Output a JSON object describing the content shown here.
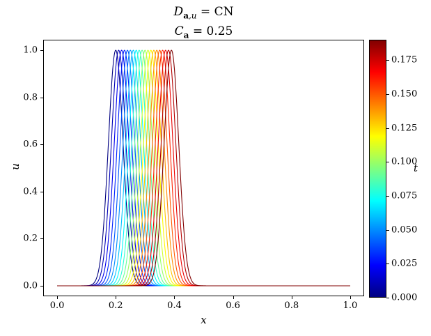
{
  "figure": {
    "background": "#ffffff",
    "title_line1": {
      "main": "D",
      "sub_bold": "a",
      "sub_rest": ",u",
      "rest": " = CN"
    },
    "title_line2": {
      "main": "C",
      "sub_bold": "a",
      "rest": " = 0.25"
    },
    "xlabel": "x",
    "ylabel": "u"
  },
  "chart_data": {
    "type": "line",
    "title": "D_{a,u} = CN ; C_a = 0.25",
    "xlabel": "x",
    "ylabel": "u",
    "xlim": [
      -0.0476,
      1.0476
    ],
    "ylim": [
      -0.0444,
      1.0444
    ],
    "grid": false,
    "frame_color": "#000000",
    "xticks": [
      0.0,
      0.2,
      0.4,
      0.6,
      0.8,
      1.0
    ],
    "xtick_labels": [
      "0.0",
      "0.2",
      "0.4",
      "0.6",
      "0.8",
      "1.0"
    ],
    "yticks": [
      0.0,
      0.2,
      0.4,
      0.6,
      0.8,
      1.0
    ],
    "ytick_labels": [
      "0.0",
      "0.2",
      "0.4",
      "0.6",
      "0.8",
      "1.0"
    ],
    "curve_model": {
      "shape": "gaussian",
      "formula": "u(x,t) = exp(-0.5*((x - (0.2 + t)) / 0.025)^2)",
      "amplitude": 1.0,
      "sigma": 0.025,
      "x_range": [
        0.0,
        1.0
      ],
      "n_points": 601,
      "line_width": 1.1
    },
    "colormap": "jet",
    "color_norm": [
      0.0,
      0.19
    ],
    "series": [
      {
        "t": 0.0,
        "center": 0.2
      },
      {
        "t": 0.01,
        "center": 0.21
      },
      {
        "t": 0.02,
        "center": 0.22
      },
      {
        "t": 0.03,
        "center": 0.23
      },
      {
        "t": 0.04,
        "center": 0.24
      },
      {
        "t": 0.05,
        "center": 0.25
      },
      {
        "t": 0.06,
        "center": 0.26
      },
      {
        "t": 0.07,
        "center": 0.27
      },
      {
        "t": 0.08,
        "center": 0.28
      },
      {
        "t": 0.09,
        "center": 0.29
      },
      {
        "t": 0.1,
        "center": 0.3
      },
      {
        "t": 0.11,
        "center": 0.31
      },
      {
        "t": 0.12,
        "center": 0.32
      },
      {
        "t": 0.13,
        "center": 0.33
      },
      {
        "t": 0.14,
        "center": 0.34
      },
      {
        "t": 0.15,
        "center": 0.35
      },
      {
        "t": 0.16,
        "center": 0.36
      },
      {
        "t": 0.17,
        "center": 0.37
      },
      {
        "t": 0.18,
        "center": 0.38
      },
      {
        "t": 0.19,
        "center": 0.39
      }
    ],
    "colorbar": {
      "label": "t",
      "vmin": 0.0,
      "vmax": 0.19,
      "ticks": [
        0.0,
        0.025,
        0.05,
        0.075,
        0.1,
        0.125,
        0.15,
        0.175
      ],
      "tick_labels": [
        "0.000",
        "0.025",
        "0.050",
        "0.075",
        "0.100",
        "0.125",
        "0.150",
        "0.175"
      ]
    }
  }
}
